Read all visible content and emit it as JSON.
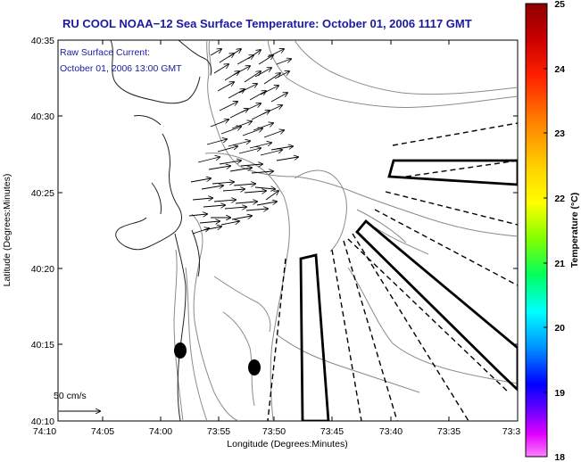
{
  "title": "RU COOL  NOAA−12  Sea Surface Temperature:  October 01, 2006 1117 GMT",
  "current_note_line1": "Raw Surface Current:",
  "current_note_line2": "October 01, 2006 13:00 GMT",
  "scale_label": "50 cm/s",
  "x_axis": {
    "label": "Longitude (Degrees:Minutes)",
    "ticks": [
      "74:10",
      "74:05",
      "74:00",
      "73:55",
      "73:50",
      "73:45",
      "73:40",
      "73:35",
      "73:3"
    ]
  },
  "y_axis": {
    "label": "Latitude (Degrees:Minutes)",
    "ticks": [
      "40:35",
      "40:30",
      "40:25",
      "40:20",
      "40:15",
      "40:10"
    ]
  },
  "colorbar": {
    "label": "Temperature (°C)",
    "ticks": [
      "25",
      "24",
      "23",
      "22",
      "21",
      "20",
      "19",
      "18"
    ],
    "colors": [
      "#8b0000",
      "#ff0000",
      "#ff8000",
      "#ffff00",
      "#80ff00",
      "#00ff80",
      "#00ffff",
      "#0080ff",
      "#0000ff",
      "#8000ff",
      "#ff00ff",
      "#ff80ff"
    ]
  }
}
